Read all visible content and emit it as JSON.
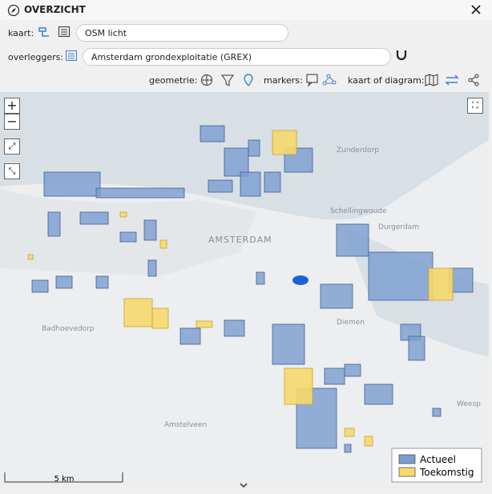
{
  "header": {
    "title": "OVERZICHT"
  },
  "controls": {
    "kaart": {
      "label": "kaart:",
      "value": "OSM licht"
    },
    "overleggers": {
      "label": "overleggers:",
      "value": "Amsterdam grondexploitatie (GREX)"
    },
    "geometrie": "geometrie:",
    "markers": "markers:",
    "kaart_of_diagram": "kaart of diagram:"
  },
  "map": {
    "places": [
      "AMSTERDAM",
      "Zunderdorp",
      "Schellingwoude",
      "Durgerdam",
      "Diemen",
      "Badhoevedorp",
      "Amstelveen",
      "Weesp"
    ],
    "scale": "5 km",
    "legend": [
      {
        "name": "Actueel",
        "color": "#7b9ccf"
      },
      {
        "name": "Toekomstig",
        "color": "#f6d86c"
      }
    ]
  }
}
